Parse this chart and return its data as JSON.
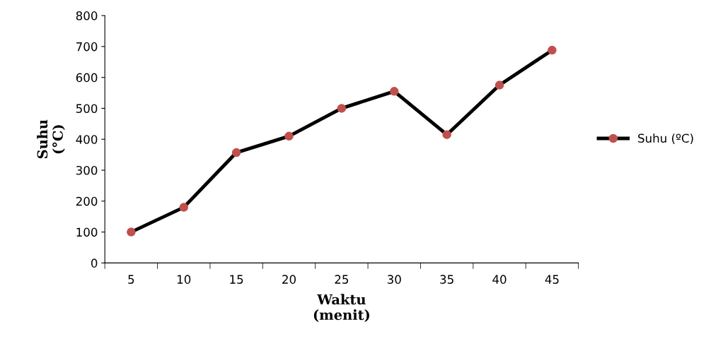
{
  "chart_data": {
    "type": "line",
    "xlabel": "Waktu\n(menit)",
    "ylabel": "Suhu\n(°C)",
    "categories": [
      "5",
      "10",
      "15",
      "20",
      "25",
      "30",
      "35",
      "40",
      "45"
    ],
    "series": [
      {
        "name": "Suhu (ºC)",
        "color": "#000000",
        "colors": [
          "#c0504d",
          "#c0504d",
          "#c0504d",
          "#c0504d",
          "#c0504d",
          "#c0504d",
          "#c0504d",
          "#c0504d",
          "#c0504d"
        ],
        "values": [
          100,
          180,
          357,
          410,
          500,
          555,
          415,
          575,
          688
        ]
      }
    ],
    "ylim": [
      0,
      800
    ],
    "yticks": [
      0,
      100,
      200,
      300,
      400,
      500,
      600,
      700,
      800
    ],
    "grid": false,
    "legend": "right",
    "marker": "circle",
    "line_style": "solid"
  }
}
